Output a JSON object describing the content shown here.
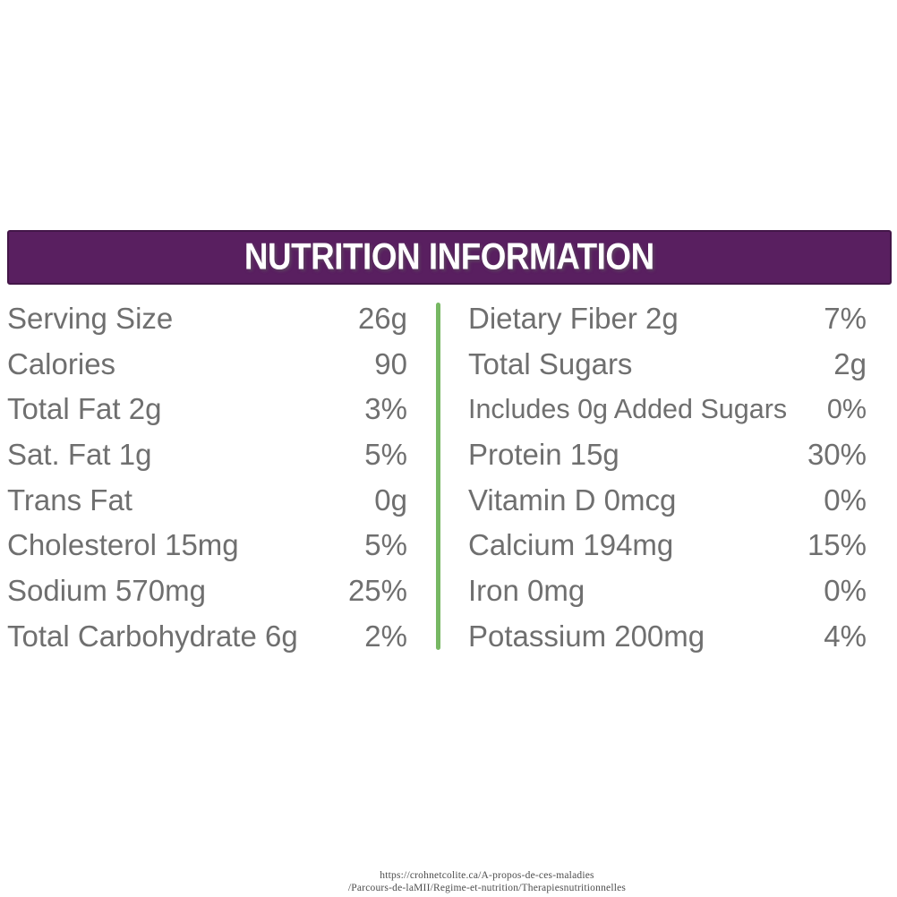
{
  "header": {
    "title": "NUTRITION INFORMATION",
    "bg_color": "#591f60",
    "border_color": "#431648",
    "text_color": "#ffffff"
  },
  "table": {
    "text_color": "#6f6f6f",
    "divider_color": "#77b863",
    "left_column": {
      "rows": [
        {
          "label": "Serving Size",
          "value": "26g"
        },
        {
          "label": "Calories",
          "value": "90"
        },
        {
          "label": "Total Fat 2g",
          "value": "3%"
        },
        {
          "label": "Sat. Fat 1g",
          "value": "5%"
        },
        {
          "label": "Trans Fat",
          "value": "0g"
        },
        {
          "label": "Cholesterol 15mg",
          "value": "5%"
        },
        {
          "label": "Sodium 570mg",
          "value": "25%"
        },
        {
          "label": "Total Carbohydrate 6g",
          "value": "2%"
        }
      ]
    },
    "right_column": {
      "rows": [
        {
          "label": "Dietary Fiber 2g",
          "value": "7%"
        },
        {
          "label": "Total Sugars",
          "value": "2g"
        },
        {
          "label": "Includes 0g Added Sugars",
          "value": "0%"
        },
        {
          "label": "Protein 15g",
          "value": "30%"
        },
        {
          "label": "Vitamin D 0mcg",
          "value": "0%"
        },
        {
          "label": "Calcium 194mg",
          "value": "15%"
        },
        {
          "label": "Iron 0mg",
          "value": "0%"
        },
        {
          "label": "Potassium 200mg",
          "value": "4%"
        }
      ]
    }
  },
  "footer": {
    "source_line1": "https://crohnetcolite.ca/A-propos-de-ces-maladies",
    "source_line2": "/Parcours-de-laMII/Regime-et-nutrition/Therapiesnutritionnelles"
  }
}
